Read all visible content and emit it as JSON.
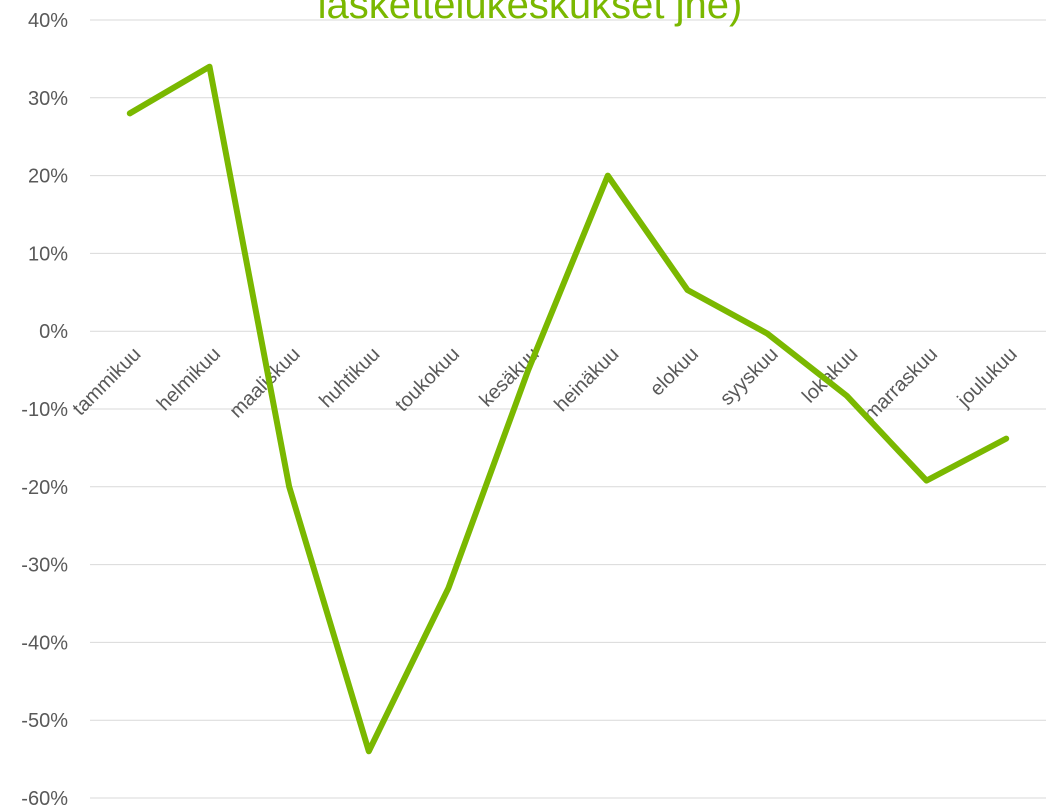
{
  "chart_data": {
    "type": "line",
    "title": "laskettelukeskukset jne)",
    "categories": [
      "tammikuu",
      "helmikuu",
      "maaliskuu",
      "huhtikuu",
      "toukokuu",
      "kesäkuu",
      "heinäkuu",
      "elokuu",
      "syyskuu",
      "lokakuu",
      "marraskuu",
      "joulukuu"
    ],
    "series": [
      {
        "values": [
          0.28,
          0.34,
          -0.2,
          -0.54,
          -0.33,
          -0.05,
          0.2,
          0.053,
          -0.003,
          -0.083,
          -0.192,
          -0.138
        ]
      }
    ],
    "ylim": [
      -0.6,
      0.4
    ],
    "yticks": [
      0.4,
      0.3,
      0.2,
      0.1,
      0,
      -0.1,
      -0.2,
      -0.3,
      -0.4,
      -0.5,
      -0.6
    ],
    "ytick_labels": [
      "40%",
      "30%",
      "20%",
      "10%",
      "0%",
      "-10%",
      "-20%",
      "-30%",
      "-40%",
      "-50%",
      "-60%"
    ],
    "grid": true,
    "colors": {
      "line": "#7ab800",
      "grid": "#d9d9d9",
      "text": "#595959",
      "title": "#7ab800"
    }
  }
}
